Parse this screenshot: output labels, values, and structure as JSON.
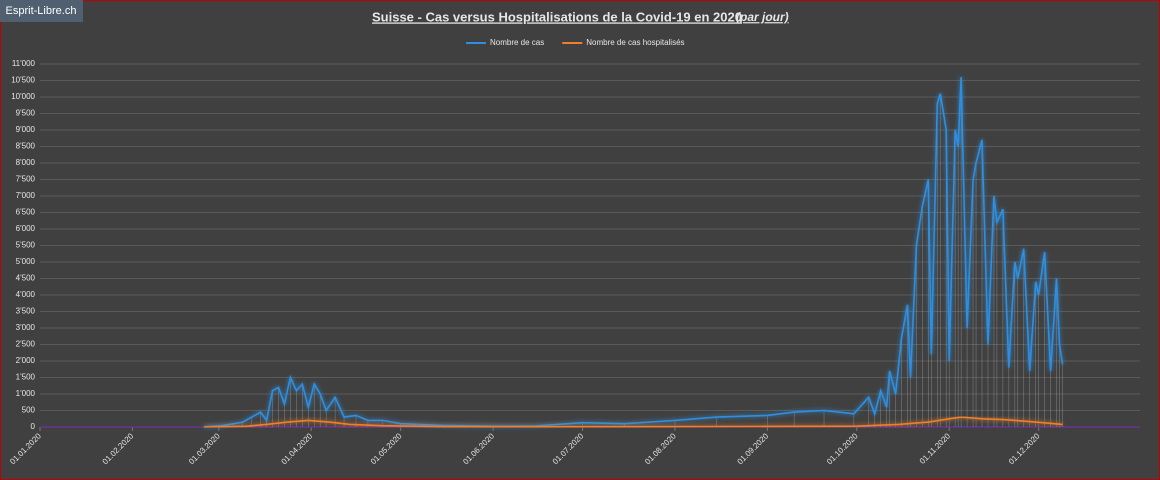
{
  "watermark": "Esprit-Libre.ch",
  "chart_data": {
    "type": "line",
    "title": "Suisse - Cas versus Hospitalisations de la Covid-19 en 2020",
    "subtitle": "(par jour)",
    "legend": "top",
    "grid": true,
    "xlim": [
      "2020-01-01",
      "2021-01-04"
    ],
    "xticks": [
      {
        "value": "2020-01-01",
        "label": "01.01.2020"
      },
      {
        "value": "2020-02-01",
        "label": "01.02.2020"
      },
      {
        "value": "2020-03-01",
        "label": "01.03.2020"
      },
      {
        "value": "2020-04-01",
        "label": "01.04.2020"
      },
      {
        "value": "2020-05-01",
        "label": "01.05.2020"
      },
      {
        "value": "2020-06-01",
        "label": "01.06.2020"
      },
      {
        "value": "2020-07-01",
        "label": "01.07.2020"
      },
      {
        "value": "2020-08-01",
        "label": "01.08.2020"
      },
      {
        "value": "2020-09-01",
        "label": "01.09.2020"
      },
      {
        "value": "2020-10-01",
        "label": "01.10.2020"
      },
      {
        "value": "2020-11-01",
        "label": "01.11.2020"
      },
      {
        "value": "2020-12-01",
        "label": "01.12.2020"
      }
    ],
    "ylim": [
      0,
      11000
    ],
    "yticks": [
      0,
      500,
      {
        "value": 1000,
        "label": "1'000"
      },
      {
        "value": 1500,
        "label": "1'500"
      },
      {
        "value": 2000,
        "label": "2'000"
      },
      {
        "value": 2500,
        "label": "2'500"
      },
      {
        "value": 3000,
        "label": "3'000"
      },
      {
        "value": 3500,
        "label": "3'500"
      },
      {
        "value": 4000,
        "label": "4'000"
      },
      {
        "value": 4500,
        "label": "4'500"
      },
      {
        "value": 5000,
        "label": "5'000"
      },
      {
        "value": 5500,
        "label": "5'500"
      },
      {
        "value": 6000,
        "label": "6'000"
      },
      {
        "value": 6500,
        "label": "6'500"
      },
      {
        "value": 7000,
        "label": "7'000"
      },
      {
        "value": 7500,
        "label": "7'500"
      },
      {
        "value": 8000,
        "label": "8'000"
      },
      {
        "value": 8500,
        "label": "8'500"
      },
      {
        "value": 9000,
        "label": "9'000"
      },
      {
        "value": 9500,
        "label": "9'500"
      },
      {
        "value": 10000,
        "label": "10'000"
      },
      {
        "value": 10500,
        "label": "10'500"
      },
      {
        "value": 11000,
        "label": "11'000"
      }
    ],
    "series": [
      {
        "name": "Nombre de cas",
        "color": "#2e8fe0",
        "x": [
          "2020-02-25",
          "2020-03-02",
          "2020-03-06",
          "2020-03-09",
          "2020-03-12",
          "2020-03-15",
          "2020-03-17",
          "2020-03-19",
          "2020-03-21",
          "2020-03-23",
          "2020-03-25",
          "2020-03-27",
          "2020-03-29",
          "2020-03-31",
          "2020-04-02",
          "2020-04-04",
          "2020-04-06",
          "2020-04-09",
          "2020-04-12",
          "2020-04-16",
          "2020-04-20",
          "2020-04-25",
          "2020-05-01",
          "2020-05-15",
          "2020-06-01",
          "2020-06-15",
          "2020-07-01",
          "2020-07-15",
          "2020-08-01",
          "2020-08-15",
          "2020-09-01",
          "2020-09-10",
          "2020-09-20",
          "2020-09-30",
          "2020-10-05",
          "2020-10-07",
          "2020-10-09",
          "2020-10-11",
          "2020-10-12",
          "2020-10-14",
          "2020-10-16",
          "2020-10-18",
          "2020-10-19",
          "2020-10-21",
          "2020-10-23",
          "2020-10-25",
          "2020-10-26",
          "2020-10-28",
          "2020-10-29",
          "2020-10-31",
          "2020-11-01",
          "2020-11-03",
          "2020-11-04",
          "2020-11-05",
          "2020-11-07",
          "2020-11-09",
          "2020-11-10",
          "2020-11-12",
          "2020-11-14",
          "2020-11-16",
          "2020-11-17",
          "2020-11-19",
          "2020-11-21",
          "2020-11-23",
          "2020-11-24",
          "2020-11-26",
          "2020-11-28",
          "2020-11-30",
          "2020-12-01",
          "2020-12-03",
          "2020-12-05",
          "2020-12-07",
          "2020-12-08",
          "2020-12-09"
        ],
        "values": [
          0,
          40,
          100,
          150,
          300,
          450,
          200,
          1100,
          1200,
          700,
          1500,
          1100,
          1300,
          600,
          1300,
          1000,
          500,
          900,
          300,
          350,
          200,
          200,
          100,
          50,
          20,
          30,
          130,
          100,
          200,
          300,
          350,
          450,
          500,
          400,
          900,
          400,
          1100,
          600,
          1700,
          1000,
          2700,
          3700,
          1500,
          5500,
          6700,
          7500,
          2200,
          9800,
          10100,
          9000,
          2000,
          9000,
          8500,
          10600,
          3000,
          7500,
          8000,
          8700,
          2500,
          7000,
          6200,
          6600,
          1800,
          5000,
          4500,
          5400,
          1700,
          4400,
          4000,
          5300,
          1700,
          4500,
          2500,
          1900
        ]
      },
      {
        "name": "Nombre de cas hospitalisés",
        "color": "#f07f2a",
        "x": [
          "2020-02-25",
          "2020-03-10",
          "2020-03-17",
          "2020-03-24",
          "2020-03-31",
          "2020-04-07",
          "2020-04-14",
          "2020-04-25",
          "2020-05-15",
          "2020-06-15",
          "2020-07-15",
          "2020-08-15",
          "2020-09-15",
          "2020-10-01",
          "2020-10-15",
          "2020-10-25",
          "2020-11-01",
          "2020-11-05",
          "2020-11-12",
          "2020-11-20",
          "2020-11-30",
          "2020-12-09"
        ],
        "values": [
          0,
          20,
          80,
          150,
          200,
          150,
          80,
          40,
          10,
          5,
          10,
          15,
          20,
          25,
          80,
          150,
          250,
          300,
          250,
          220,
          150,
          80
        ]
      }
    ]
  }
}
